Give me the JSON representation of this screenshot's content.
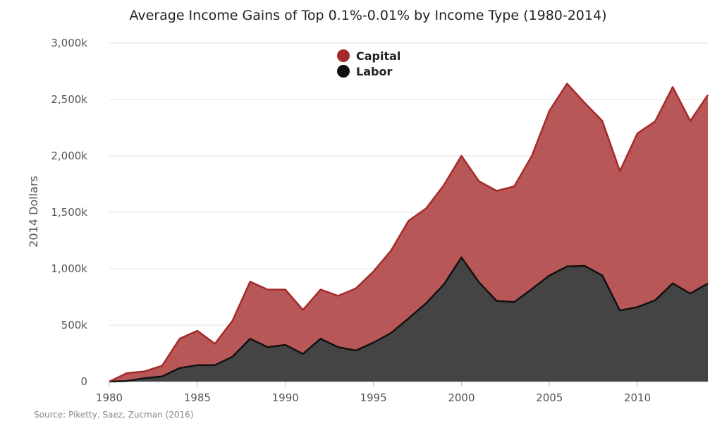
{
  "chart_data": {
    "type": "area",
    "stacked": true,
    "title": "Average Income Gains of Top 0.1%-0.01% by Income Type (1980-2014)",
    "xlabel": "",
    "ylabel": "2014 Dollars",
    "source": "Source: Piketty, Saez, Zucman (2016)",
    "x": [
      1980,
      1981,
      1982,
      1983,
      1984,
      1985,
      1986,
      1987,
      1988,
      1989,
      1990,
      1991,
      1992,
      1993,
      1994,
      1995,
      1996,
      1997,
      1998,
      1999,
      2000,
      2001,
      2002,
      2003,
      2004,
      2005,
      2006,
      2007,
      2008,
      2009,
      2010,
      2011,
      2012,
      2013,
      2014
    ],
    "xlim": [
      1980,
      2014
    ],
    "ylim": [
      0,
      3000000
    ],
    "x_ticks": [
      1980,
      1985,
      1990,
      1995,
      2000,
      2005,
      2010
    ],
    "x_tick_labels": [
      "1980",
      "1985",
      "1990",
      "1995",
      "2000",
      "2005",
      "2010"
    ],
    "y_ticks": [
      0,
      500000,
      1000000,
      1500000,
      2000000,
      2500000,
      3000000
    ],
    "y_tick_labels": [
      "0",
      "500k",
      "1,000k",
      "1,500k",
      "2,000k",
      "2,500k",
      "3,000k"
    ],
    "grid": true,
    "legend_position": "top-center",
    "series": [
      {
        "name": "Labor",
        "color": "#111111",
        "fill": "#444444",
        "values": [
          0,
          5000,
          30000,
          45000,
          120000,
          145000,
          145000,
          220000,
          380000,
          305000,
          325000,
          245000,
          380000,
          305000,
          275000,
          345000,
          430000,
          560000,
          695000,
          860000,
          1100000,
          880000,
          715000,
          705000,
          820000,
          940000,
          1020000,
          1025000,
          940000,
          630000,
          660000,
          720000,
          870000,
          780000,
          870000
        ]
      },
      {
        "name": "Capital",
        "color": "#a52a2a",
        "fill": "#b85757",
        "values": [
          0,
          70000,
          60000,
          95000,
          260000,
          305000,
          190000,
          320000,
          505000,
          510000,
          490000,
          390000,
          435000,
          455000,
          550000,
          630000,
          730000,
          865000,
          840000,
          880000,
          900000,
          895000,
          975000,
          1025000,
          1180000,
          1460000,
          1620000,
          1445000,
          1370000,
          1235000,
          1540000,
          1585000,
          1740000,
          1530000,
          1670000
        ]
      }
    ]
  }
}
